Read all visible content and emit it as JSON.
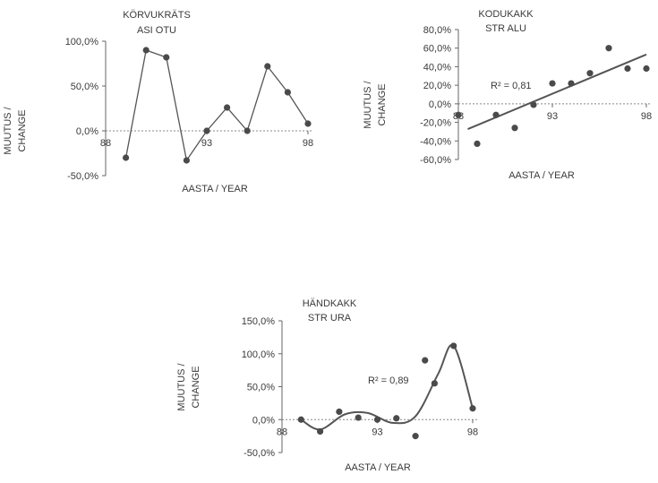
{
  "chart_data": [
    {
      "type": "line",
      "title": [
        "KÖRVUKRÄTS",
        "ASI OTU"
      ],
      "xlabel": "AASTA / YEAR",
      "ylabel": [
        "MUUTUS /",
        "CHANGE"
      ],
      "xlim": [
        88,
        98
      ],
      "ylim": [
        -50,
        100
      ],
      "yticks": [
        -50,
        0,
        50,
        100
      ],
      "ytick_labels": [
        "-50,0%",
        "0,0%",
        "50,0%",
        "100,0%"
      ],
      "xticks": [
        88,
        93,
        98
      ],
      "xtick_labels": [
        "88",
        "93",
        "98"
      ],
      "series": [
        {
          "x": [
            89,
            90,
            91,
            92,
            93,
            94,
            95,
            96,
            97,
            98
          ],
          "values": [
            -30,
            90,
            82,
            -33,
            0,
            26,
            0,
            72,
            43,
            8
          ]
        }
      ],
      "grid": false
    },
    {
      "type": "scatter",
      "title": [
        "KODUKAKK",
        "STR ALU"
      ],
      "xlabel": "AASTA / YEAR",
      "ylabel": [
        "MUUTUS /",
        "CHANGE"
      ],
      "xlim": [
        88,
        98
      ],
      "ylim": [
        -60,
        80
      ],
      "yticks": [
        -60,
        -40,
        -20,
        0,
        20,
        40,
        60,
        80
      ],
      "ytick_labels": [
        "-60,0%",
        "-40,0%",
        "-20,0%",
        "0,0%",
        "20,0%",
        "40,0%",
        "60,0%",
        "80,0%"
      ],
      "xticks": [
        88,
        93,
        98
      ],
      "xtick_labels": [
        "88",
        "93",
        "98"
      ],
      "annotation": "R² = 0,81",
      "trend": "linear",
      "series": [
        {
          "x": [
            88,
            89,
            90,
            91,
            92,
            93,
            94,
            95,
            96,
            97,
            98
          ],
          "values": [
            -12,
            -43,
            -12,
            -26,
            -1,
            22,
            22,
            33,
            60,
            38,
            38
          ]
        }
      ],
      "grid": false
    },
    {
      "type": "scatter",
      "title": [
        "HÄNDKAKK",
        "STR URA"
      ],
      "xlabel": "AASTA / YEAR",
      "ylabel": [
        "MUUTUS /",
        "CHANGE"
      ],
      "xlim": [
        88,
        98
      ],
      "ylim": [
        -50,
        150
      ],
      "yticks": [
        -50,
        0,
        50,
        100,
        150
      ],
      "ytick_labels": [
        "-50,0%",
        "0,0%",
        "50,0%",
        "100,0%",
        "150,0%"
      ],
      "xticks": [
        88,
        93,
        98
      ],
      "xtick_labels": [
        "88",
        "93",
        "98"
      ],
      "annotation": "R² = 0,89",
      "trend": "polynomial",
      "series": [
        {
          "x": [
            89,
            90,
            91,
            92,
            93,
            94,
            95,
            95.5,
            96,
            97,
            98
          ],
          "values": [
            0,
            -18,
            12,
            3,
            0,
            2,
            -25,
            90,
            55,
            112,
            17
          ]
        }
      ],
      "grid": false
    }
  ]
}
